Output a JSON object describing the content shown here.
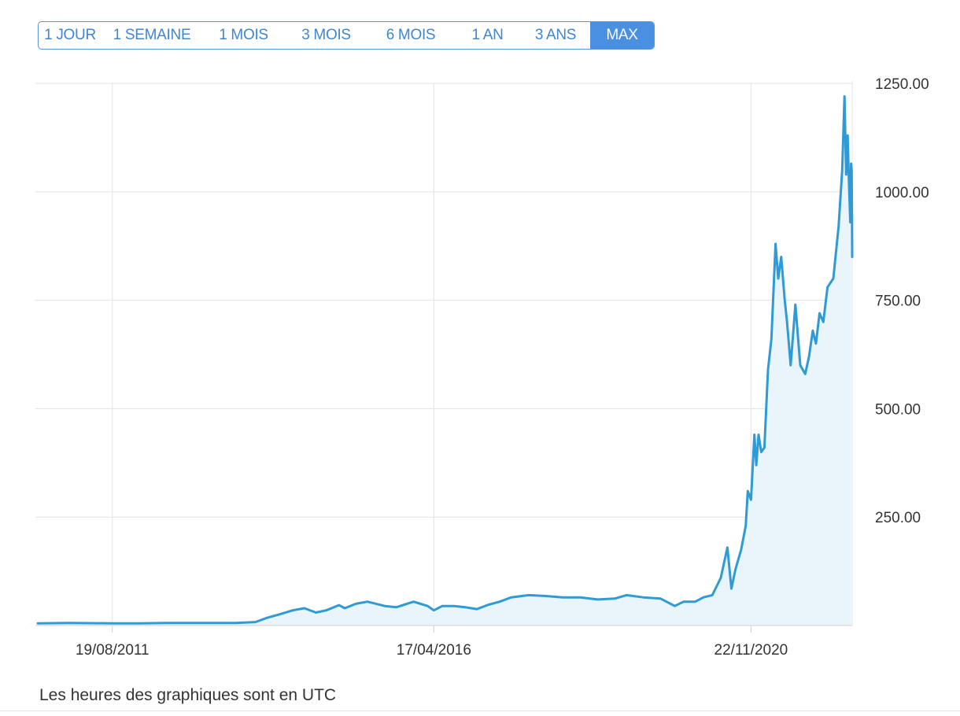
{
  "range_selector": {
    "options": [
      "1 JOUR",
      "1 SEMAINE",
      "1 MOIS",
      "3 MOIS",
      "6 MOIS",
      "1 AN",
      "3 ANS",
      "MAX"
    ],
    "active_index": 7
  },
  "footnote": "Les heures des graphiques sont en UTC",
  "colors": {
    "accent": "#4a90e2",
    "line": "#2e9ad6",
    "area_fill": "#eaf4fb",
    "grid": "#e3e3e3"
  },
  "chart_data": {
    "type": "area",
    "title": "",
    "xlabel": "",
    "ylabel": "",
    "ylim": [
      0,
      1250
    ],
    "y_ticks": [
      "1250.00",
      "1000.00",
      "750.00",
      "500.00",
      "250.00"
    ],
    "y_tick_values": [
      1250,
      1000,
      750,
      500,
      250
    ],
    "x_ticks": [
      "19/08/2011",
      "17/04/2016",
      "22/11/2020"
    ],
    "x_tick_values": [
      "2011-08-19",
      "2016-04-17",
      "2020-11-22"
    ],
    "x_range": [
      "2010-07-20",
      "2022-05-12"
    ],
    "grid": true,
    "axis_position": "right",
    "series": [
      {
        "values": [
          [
            "2010-07-20",
            5
          ],
          [
            "2011-01-01",
            6
          ],
          [
            "2011-08-19",
            5
          ],
          [
            "2012-01-01",
            5
          ],
          [
            "2012-06-01",
            6
          ],
          [
            "2013-01-01",
            6
          ],
          [
            "2013-06-01",
            6
          ],
          [
            "2013-09-15",
            8
          ],
          [
            "2013-11-10",
            17
          ],
          [
            "2014-01-15",
            25
          ],
          [
            "2014-04-01",
            35
          ],
          [
            "2014-06-01",
            40
          ],
          [
            "2014-08-01",
            30
          ],
          [
            "2014-09-25",
            35
          ],
          [
            "2014-12-01",
            47
          ],
          [
            "2015-01-01",
            40
          ],
          [
            "2015-03-01",
            50
          ],
          [
            "2015-05-01",
            55
          ],
          [
            "2015-08-01",
            45
          ],
          [
            "2015-10-01",
            42
          ],
          [
            "2016-01-01",
            55
          ],
          [
            "2016-03-15",
            45
          ],
          [
            "2016-04-17",
            35
          ],
          [
            "2016-06-01",
            45
          ],
          [
            "2016-08-01",
            45
          ],
          [
            "2016-10-01",
            42
          ],
          [
            "2016-12-01",
            38
          ],
          [
            "2017-02-01",
            48
          ],
          [
            "2017-04-01",
            55
          ],
          [
            "2017-06-01",
            65
          ],
          [
            "2017-09-01",
            70
          ],
          [
            "2017-12-01",
            68
          ],
          [
            "2018-03-01",
            65
          ],
          [
            "2018-06-01",
            65
          ],
          [
            "2018-09-01",
            60
          ],
          [
            "2018-12-01",
            62
          ],
          [
            "2019-02-01",
            70
          ],
          [
            "2019-05-01",
            65
          ],
          [
            "2019-08-01",
            62
          ],
          [
            "2019-10-15",
            45
          ],
          [
            "2019-12-01",
            55
          ],
          [
            "2020-02-01",
            55
          ],
          [
            "2020-03-15",
            65
          ],
          [
            "2020-05-01",
            70
          ],
          [
            "2020-06-15",
            110
          ],
          [
            "2020-07-20",
            180
          ],
          [
            "2020-08-10",
            85
          ],
          [
            "2020-09-01",
            130
          ],
          [
            "2020-10-01",
            175
          ],
          [
            "2020-10-25",
            230
          ],
          [
            "2020-11-05",
            310
          ],
          [
            "2020-11-22",
            290
          ],
          [
            "2020-12-10",
            440
          ],
          [
            "2020-12-20",
            370
          ],
          [
            "2021-01-01",
            440
          ],
          [
            "2021-01-15",
            400
          ],
          [
            "2021-02-01",
            410
          ],
          [
            "2021-02-20",
            590
          ],
          [
            "2021-03-10",
            660
          ],
          [
            "2021-04-01",
            880
          ],
          [
            "2021-04-15",
            800
          ],
          [
            "2021-05-01",
            850
          ],
          [
            "2021-05-20",
            750
          ],
          [
            "2021-06-01",
            700
          ],
          [
            "2021-06-20",
            600
          ],
          [
            "2021-07-15",
            740
          ],
          [
            "2021-08-10",
            600
          ],
          [
            "2021-09-05",
            580
          ],
          [
            "2021-09-25",
            620
          ],
          [
            "2021-10-15",
            680
          ],
          [
            "2021-11-01",
            650
          ],
          [
            "2021-11-20",
            720
          ],
          [
            "2021-12-10",
            700
          ],
          [
            "2022-01-01",
            780
          ],
          [
            "2022-02-01",
            800
          ],
          [
            "2022-03-01",
            920
          ],
          [
            "2022-03-20",
            1050
          ],
          [
            "2022-04-01",
            1220
          ],
          [
            "2022-04-10",
            1040
          ],
          [
            "2022-04-18",
            1130
          ],
          [
            "2022-04-25",
            1020
          ],
          [
            "2022-05-02",
            930
          ],
          [
            "2022-05-06",
            1065
          ],
          [
            "2022-05-09",
            1050
          ],
          [
            "2022-05-11",
            930
          ],
          [
            "2022-05-12",
            850
          ]
        ]
      }
    ]
  }
}
